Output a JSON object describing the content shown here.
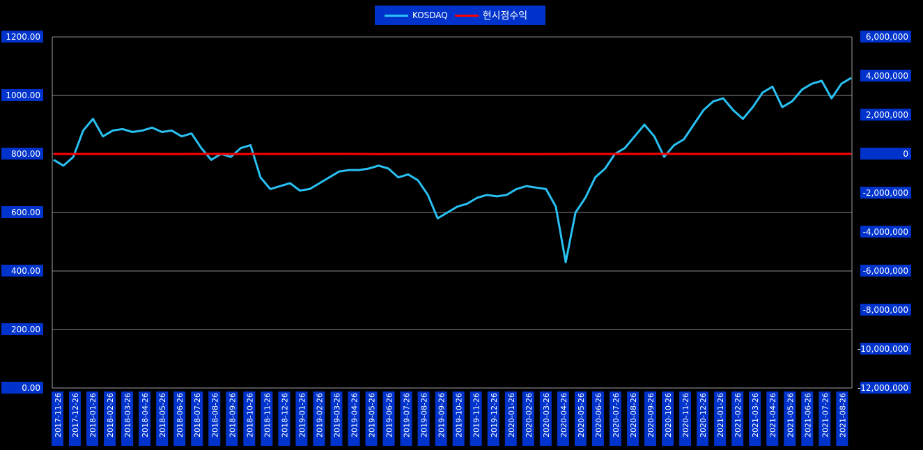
{
  "legend": [
    {
      "label": "KOSDAQ",
      "color": "#29c0f2"
    },
    {
      "label": "현시점수익",
      "color": "#ff0000"
    }
  ],
  "chart_data": {
    "type": "line",
    "grid": true,
    "legend_position": "top-center",
    "left_axis": {
      "ylim": [
        0,
        1200
      ],
      "ticks": [
        "0.00",
        "200.00",
        "400.00",
        "600.00",
        "800.00",
        "1000.00",
        "1200.00"
      ]
    },
    "right_axis": {
      "ylim": [
        -12000000,
        6000000
      ],
      "ticks": [
        "-12,000,000",
        "-10,000,000",
        "-8,000,000",
        "-6,000,000",
        "-4,000,000",
        "-2,000,000",
        "0",
        "2,000,000",
        "4,000,000",
        "6,000,000"
      ]
    },
    "x_ticks": [
      "2017-11-26",
      "2017-12-26",
      "2018-01-26",
      "2018-02-26",
      "2018-03-26",
      "2018-04-26",
      "2018-05-26",
      "2018-06-26",
      "2018-07-26",
      "2018-08-26",
      "2018-09-26",
      "2018-10-26",
      "2018-11-26",
      "2018-12-26",
      "2019-01-26",
      "2019-02-26",
      "2019-03-26",
      "2019-04-26",
      "2019-05-26",
      "2019-06-26",
      "2019-07-26",
      "2019-08-26",
      "2019-09-26",
      "2019-10-26",
      "2019-11-26",
      "2019-12-26",
      "2020-01-26",
      "2020-02-26",
      "2020-03-26",
      "2020-04-26",
      "2020-05-26",
      "2020-06-26",
      "2020-07-26",
      "2020-08-26",
      "2020-09-26",
      "2020-10-26",
      "2020-11-26",
      "2020-12-26",
      "2021-01-26",
      "2021-02-26",
      "2021-03-26",
      "2021-04-26",
      "2021-05-26",
      "2021-06-26",
      "2021-07-26",
      "2021-08-26"
    ],
    "series": [
      {
        "name": "KOSDAQ",
        "axis": "left",
        "color": "#29c0f2",
        "values": [
          780,
          760,
          790,
          880,
          920,
          860,
          880,
          885,
          875,
          880,
          890,
          875,
          880,
          860,
          870,
          820,
          780,
          800,
          790,
          820,
          830,
          720,
          680,
          690,
          700,
          675,
          680,
          700,
          720,
          740,
          745,
          745,
          750,
          760,
          750,
          720,
          730,
          710,
          660,
          580,
          600,
          620,
          630,
          650,
          660,
          655,
          660,
          680,
          690,
          685,
          680,
          620,
          430,
          600,
          650,
          720,
          750,
          800,
          820,
          860,
          900,
          860,
          790,
          830,
          850,
          900,
          950,
          980,
          990,
          950,
          920,
          960,
          1010,
          1030,
          960,
          980,
          1020,
          1040,
          1050,
          990,
          1040,
          1060
        ]
      },
      {
        "name": "현시점수익",
        "axis": "right",
        "color": "#ff0000",
        "values": [
          0,
          200,
          -200,
          300,
          100,
          -800,
          -200,
          -1000,
          -1700,
          -1300,
          -1300,
          -2300,
          -3100,
          -1900,
          -1200,
          300,
          800,
          -1500,
          -3100,
          -2000,
          -700,
          -1500,
          -200,
          600,
          1100,
          1200,
          1700,
          2600,
          2800,
          2200,
          2300,
          1700,
          -2500,
          -6300,
          -4100,
          -3000,
          -2000,
          -3000,
          -2000,
          -2500,
          -4000,
          -2800,
          -3000,
          -4500,
          -2500,
          -3000,
          -5300,
          -8000,
          -10700,
          -6300,
          -4500,
          -3500,
          -2000,
          -500,
          400,
          500,
          -1500,
          700,
          2500,
          1400,
          2800,
          2600,
          2200,
          2500,
          1800,
          500,
          300,
          600,
          1200,
          500,
          200,
          1000,
          1200,
          700,
          500,
          2800,
          3200,
          3800,
          4100,
          2600,
          3700,
          3600
        ]
      }
    ]
  }
}
